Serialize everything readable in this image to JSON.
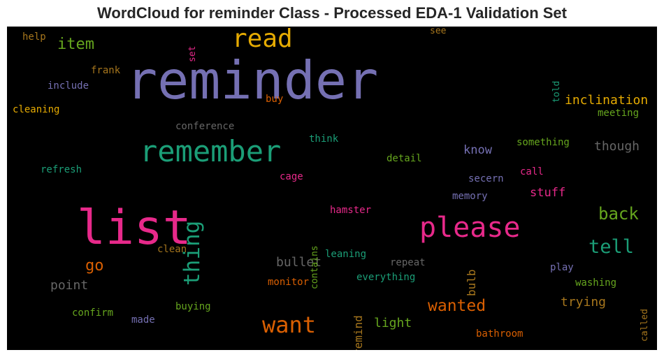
{
  "chart_data": {
    "type": "wordcloud",
    "title": "WordCloud for reminder Class - Processed EDA-1 Validation Set",
    "background": "#000000",
    "palette": {
      "purple": "#7570b3",
      "green": "#1b9e77",
      "pink": "#e7298a",
      "orange": "#d95f02",
      "olive": "#66a61e",
      "gold": "#e6ab02",
      "brown": "#a6761d",
      "gray": "#666666"
    },
    "words": [
      {
        "text": "reminder",
        "weight": 1.0,
        "color": "#7570b3",
        "orientation": "horizontal"
      },
      {
        "text": "list",
        "weight": 0.9,
        "color": "#e7298a",
        "orientation": "horizontal"
      },
      {
        "text": "remember",
        "weight": 0.62,
        "color": "#1b9e77",
        "orientation": "horizontal"
      },
      {
        "text": "please",
        "weight": 0.6,
        "color": "#e7298a",
        "orientation": "horizontal"
      },
      {
        "text": "read",
        "weight": 0.5,
        "color": "#e6ab02",
        "orientation": "horizontal"
      },
      {
        "text": "want",
        "weight": 0.45,
        "color": "#d95f02",
        "orientation": "horizontal"
      },
      {
        "text": "thing",
        "weight": 0.43,
        "color": "#1b9e77",
        "orientation": "vertical"
      },
      {
        "text": "tell",
        "weight": 0.37,
        "color": "#1b9e77",
        "orientation": "horizontal"
      },
      {
        "text": "back",
        "weight": 0.33,
        "color": "#66a61e",
        "orientation": "horizontal"
      },
      {
        "text": "wanted",
        "weight": 0.32,
        "color": "#d95f02",
        "orientation": "horizontal"
      },
      {
        "text": "item",
        "weight": 0.3,
        "color": "#66a61e",
        "orientation": "horizontal"
      },
      {
        "text": "go",
        "weight": 0.3,
        "color": "#d95f02",
        "orientation": "horizontal"
      },
      {
        "text": "inclination",
        "weight": 0.25,
        "color": "#e6ab02",
        "orientation": "horizontal"
      },
      {
        "text": "though",
        "weight": 0.25,
        "color": "#666666",
        "orientation": "horizontal"
      },
      {
        "text": "light",
        "weight": 0.25,
        "color": "#66a61e",
        "orientation": "horizontal"
      },
      {
        "text": "trying",
        "weight": 0.25,
        "color": "#a6761d",
        "orientation": "horizontal"
      },
      {
        "text": "point",
        "weight": 0.24,
        "color": "#666666",
        "orientation": "horizontal"
      },
      {
        "text": "bullet",
        "weight": 0.24,
        "color": "#666666",
        "orientation": "horizontal"
      },
      {
        "text": "know",
        "weight": 0.23,
        "color": "#7570b3",
        "orientation": "horizontal"
      },
      {
        "text": "stuff",
        "weight": 0.23,
        "color": "#e7298a",
        "orientation": "horizontal"
      },
      {
        "text": "remind",
        "weight": 0.22,
        "color": "#a6761d",
        "orientation": "vertical"
      },
      {
        "text": "bulb",
        "weight": 0.22,
        "color": "#a6761d",
        "orientation": "vertical"
      },
      {
        "text": "cleaning",
        "weight": 0.18,
        "color": "#e6ab02",
        "orientation": "horizontal"
      },
      {
        "text": "conference",
        "weight": 0.18,
        "color": "#666666",
        "orientation": "horizontal"
      },
      {
        "text": "detail",
        "weight": 0.17,
        "color": "#66a61e",
        "orientation": "horizontal"
      },
      {
        "text": "refresh",
        "weight": 0.17,
        "color": "#1b9e77",
        "orientation": "horizontal"
      },
      {
        "text": "include",
        "weight": 0.17,
        "color": "#7570b3",
        "orientation": "horizontal"
      },
      {
        "text": "frank",
        "weight": 0.17,
        "color": "#a6761d",
        "orientation": "horizontal"
      },
      {
        "text": "help",
        "weight": 0.16,
        "color": "#a6761d",
        "orientation": "horizontal"
      },
      {
        "text": "set",
        "weight": 0.16,
        "color": "#e7298a",
        "orientation": "vertical"
      },
      {
        "text": "see",
        "weight": 0.16,
        "color": "#a6761d",
        "orientation": "horizontal"
      },
      {
        "text": "told",
        "weight": 0.16,
        "color": "#1b9e77",
        "orientation": "vertical"
      },
      {
        "text": "buy",
        "weight": 0.16,
        "color": "#d95f02",
        "orientation": "horizontal"
      },
      {
        "text": "meeting",
        "weight": 0.16,
        "color": "#66a61e",
        "orientation": "horizontal"
      },
      {
        "text": "think",
        "weight": 0.16,
        "color": "#1b9e77",
        "orientation": "horizontal"
      },
      {
        "text": "something",
        "weight": 0.16,
        "color": "#66a61e",
        "orientation": "horizontal"
      },
      {
        "text": "cage",
        "weight": 0.16,
        "color": "#e7298a",
        "orientation": "horizontal"
      },
      {
        "text": "secern",
        "weight": 0.16,
        "color": "#7570b3",
        "orientation": "horizontal"
      },
      {
        "text": "call",
        "weight": 0.16,
        "color": "#e7298a",
        "orientation": "horizontal"
      },
      {
        "text": "memory",
        "weight": 0.16,
        "color": "#7570b3",
        "orientation": "horizontal"
      },
      {
        "text": "hamster",
        "weight": 0.16,
        "color": "#e7298a",
        "orientation": "horizontal"
      },
      {
        "text": "contains",
        "weight": 0.15,
        "color": "#66a61e",
        "orientation": "vertical"
      },
      {
        "text": "clean",
        "weight": 0.16,
        "color": "#a6761d",
        "orientation": "horizontal"
      },
      {
        "text": "leaning",
        "weight": 0.16,
        "color": "#1b9e77",
        "orientation": "horizontal"
      },
      {
        "text": "repeat",
        "weight": 0.16,
        "color": "#666666",
        "orientation": "horizontal"
      },
      {
        "text": "play",
        "weight": 0.16,
        "color": "#7570b3",
        "orientation": "horizontal"
      },
      {
        "text": "monitor",
        "weight": 0.16,
        "color": "#d95f02",
        "orientation": "horizontal"
      },
      {
        "text": "everything",
        "weight": 0.16,
        "color": "#1b9e77",
        "orientation": "horizontal"
      },
      {
        "text": "washing",
        "weight": 0.16,
        "color": "#66a61e",
        "orientation": "horizontal"
      },
      {
        "text": "called",
        "weight": 0.15,
        "color": "#a6761d",
        "orientation": "vertical"
      },
      {
        "text": "confirm",
        "weight": 0.16,
        "color": "#66a61e",
        "orientation": "horizontal"
      },
      {
        "text": "buying",
        "weight": 0.16,
        "color": "#66a61e",
        "orientation": "horizontal"
      },
      {
        "text": "made",
        "weight": 0.16,
        "color": "#7570b3",
        "orientation": "horizontal"
      },
      {
        "text": "bathroom",
        "weight": 0.16,
        "color": "#d95f02",
        "orientation": "horizontal"
      }
    ]
  }
}
